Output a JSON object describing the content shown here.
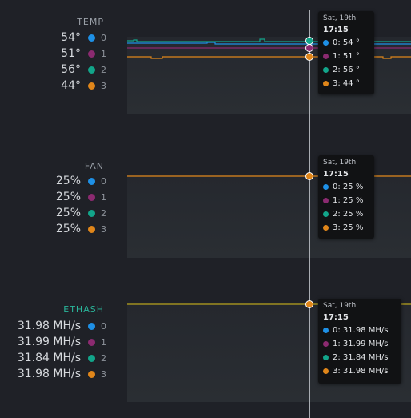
{
  "colors": {
    "gpu0": "#1e90e6",
    "gpu1": "#8b2a70",
    "gpu2": "#12a58a",
    "gpu3": "#e0861a",
    "ethash_title": "#2ab59a",
    "background": "#1f2127",
    "grid": "#30343a"
  },
  "panels": {
    "temp": {
      "title": "TEMP",
      "rows": [
        {
          "value": "54°",
          "index": "0"
        },
        {
          "value": "51°",
          "index": "1"
        },
        {
          "value": "56°",
          "index": "2"
        },
        {
          "value": "44°",
          "index": "3"
        }
      ],
      "tooltip": {
        "date": "Sat, 19th",
        "time": "17:15",
        "rows": [
          "0: 54 °",
          "1: 51 °",
          "2: 56 °",
          "3: 44 °"
        ]
      }
    },
    "fan": {
      "title": "FAN",
      "rows": [
        {
          "value": "25%",
          "index": "0"
        },
        {
          "value": "25%",
          "index": "1"
        },
        {
          "value": "25%",
          "index": "2"
        },
        {
          "value": "25%",
          "index": "3"
        }
      ],
      "tooltip": {
        "date": "Sat, 19th",
        "time": "17:15",
        "rows": [
          "0: 25 %",
          "1: 25 %",
          "2: 25 %",
          "3: 25 %"
        ]
      }
    },
    "ethash": {
      "title": "ETHASH",
      "rows": [
        {
          "value": "31.98 MH/s",
          "index": "0"
        },
        {
          "value": "31.99 MH/s",
          "index": "1"
        },
        {
          "value": "31.84 MH/s",
          "index": "2"
        },
        {
          "value": "31.98 MH/s",
          "index": "3"
        }
      ],
      "tooltip": {
        "date": "Sat, 19th",
        "time": "17:15",
        "rows": [
          "0: 31.98 MH/s",
          "1: 31.99 MH/s",
          "2: 31.84 MH/s",
          "3: 31.98 MH/s"
        ]
      }
    }
  }
}
